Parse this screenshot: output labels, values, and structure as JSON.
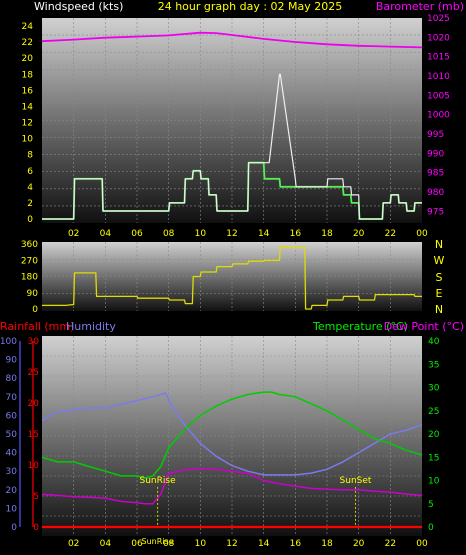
{
  "chart_data": [
    {
      "type": "line",
      "title": "24 hour graph day : 02 May 2025",
      "ylabel_left": "Windspeed (kts)",
      "ylabel_right": "Barometer (mb)",
      "x_ticks": [
        "02",
        "04",
        "06",
        "08",
        "10",
        "12",
        "14",
        "16",
        "18",
        "20",
        "22",
        "00"
      ],
      "x_range": [
        0,
        24
      ],
      "left_axis": {
        "range": [
          0,
          25
        ],
        "ticks": [
          0,
          2,
          4,
          6,
          8,
          10,
          12,
          14,
          16,
          18,
          20,
          22,
          24
        ]
      },
      "right_axis": {
        "range": [
          973,
          1025
        ],
        "ticks": [
          975,
          980,
          985,
          990,
          995,
          1000,
          1005,
          1010,
          1015,
          1020,
          1025
        ]
      },
      "series": [
        {
          "name": "Windspeed (kts)",
          "axis": "left",
          "color": "#55ee55",
          "x": [
            0,
            2.0,
            2.05,
            3.8,
            3.85,
            8.0,
            8.05,
            9.0,
            9.05,
            9.5,
            9.55,
            10.0,
            10.05,
            10.5,
            10.55,
            11.0,
            11.05,
            13.0,
            13.05,
            14.0,
            14.05,
            15.0,
            15.05,
            16.0,
            16.05,
            18.5,
            18.55,
            19.0,
            19.05,
            19.5,
            19.55,
            20.0,
            20.05,
            21.5,
            21.55,
            22.0,
            22.05,
            22.5,
            22.55,
            23.0,
            23.05,
            23.5,
            23.55,
            24.0
          ],
          "y": [
            0,
            0,
            5,
            5,
            1,
            1,
            2,
            2,
            5,
            5,
            6,
            6,
            5,
            5,
            3,
            3,
            1,
            1,
            7,
            7,
            5,
            5,
            4,
            4,
            4,
            4,
            4,
            4,
            3,
            3,
            2,
            2,
            0,
            0,
            2,
            2,
            3,
            3,
            2,
            2,
            1,
            1,
            2,
            2
          ]
        },
        {
          "name": "Gust",
          "axis": "left",
          "color": "#eeeeee",
          "x": [
            0,
            2.0,
            2.05,
            3.8,
            3.85,
            8.0,
            8.05,
            9.0,
            9.05,
            9.5,
            9.55,
            10.0,
            10.05,
            10.5,
            10.55,
            11.0,
            11.05,
            13.0,
            13.05,
            14.3,
            14.35,
            15.0,
            15.05,
            16.0,
            16.05,
            18.0,
            18.05,
            19.0,
            19.05,
            19.5,
            19.55,
            20.0,
            20.05,
            21.5,
            21.55,
            22.0,
            22.05,
            22.5,
            22.55,
            23.0,
            23.05,
            23.5,
            23.55,
            24.0
          ],
          "y": [
            0,
            0,
            5,
            5,
            1,
            1,
            2,
            2,
            5,
            5,
            6,
            6,
            5,
            5,
            3,
            3,
            1,
            1,
            7,
            7,
            7,
            18,
            18,
            5,
            4,
            4,
            5,
            5,
            4,
            4,
            3,
            3,
            0,
            0,
            2,
            2,
            3,
            3,
            2,
            2,
            1,
            1,
            2,
            2
          ]
        },
        {
          "name": "Barometer (mb)",
          "axis": "right",
          "color": "#ee00ee",
          "x": [
            0,
            2,
            4,
            6,
            8,
            10,
            11,
            12,
            14,
            16,
            18,
            20,
            22,
            24
          ],
          "y": [
            1019.0,
            1019.4,
            1019.9,
            1020.2,
            1020.5,
            1021.2,
            1021.1,
            1020.6,
            1019.6,
            1018.8,
            1018.2,
            1017.8,
            1017.6,
            1017.4
          ]
        }
      ]
    },
    {
      "type": "line",
      "title": "",
      "x_ticks": [
        "02",
        "04",
        "06",
        "08",
        "10",
        "12",
        "14",
        "16",
        "18",
        "20",
        "22",
        "00"
      ],
      "x_range": [
        0,
        24
      ],
      "left_axis": {
        "range": [
          0,
          360
        ],
        "ticks": [
          0,
          90,
          180,
          270,
          360
        ]
      },
      "compass_labels": [
        "N",
        "W",
        "S",
        "E",
        "N"
      ],
      "series": [
        {
          "name": "Wind direction",
          "axis": "left",
          "color": "#dddd00",
          "x": [
            0,
            1.5,
            2.0,
            2.05,
            3.4,
            3.45,
            4.0,
            6.0,
            6.05,
            8.0,
            8.05,
            9.0,
            9.05,
            9.5,
            9.55,
            10.0,
            10.05,
            11.0,
            11.05,
            12.0,
            12.05,
            13.0,
            13.05,
            14.0,
            14.05,
            15.0,
            15.05,
            16.0,
            16.05,
            16.6,
            16.65,
            17.0,
            17.05,
            18.0,
            18.05,
            19.0,
            19.05,
            20.0,
            20.05,
            21.0,
            21.05,
            22.0,
            22.05,
            23.5,
            23.55,
            24.0
          ],
          "y": [
            20,
            20,
            25,
            200,
            200,
            70,
            70,
            70,
            60,
            60,
            50,
            50,
            30,
            30,
            180,
            180,
            205,
            205,
            235,
            235,
            250,
            250,
            265,
            265,
            270,
            270,
            345,
            345,
            340,
            340,
            0,
            0,
            20,
            20,
            50,
            50,
            70,
            70,
            50,
            50,
            80,
            80,
            80,
            80,
            70,
            70
          ]
        }
      ]
    },
    {
      "type": "line",
      "title": "",
      "ylabel_left_1": "Rainfall (mm)",
      "ylabel_left_2": "Humidity",
      "ylabel_right_1": "Temperature (°C)",
      "ylabel_right_2": "Dew Point (°C)",
      "x_ticks": [
        "02",
        "04",
        "06",
        "08",
        "10",
        "12",
        "14",
        "16",
        "18",
        "20",
        "22",
        "00"
      ],
      "x_range": [
        0,
        24
      ],
      "humidity_axis": {
        "range": [
          0,
          100
        ],
        "ticks": [
          0,
          10,
          20,
          30,
          40,
          50,
          60,
          70,
          80,
          90,
          100
        ]
      },
      "rain_axis": {
        "range": [
          0,
          30
        ],
        "ticks": [
          0,
          5,
          10,
          15,
          20,
          25,
          30
        ]
      },
      "temp_axis": {
        "range": [
          0,
          40
        ],
        "ticks": [
          0,
          5,
          10,
          15,
          20,
          25,
          30,
          35,
          40
        ]
      },
      "annotations": [
        {
          "text": "SunRise",
          "x": 7.3,
          "y_temp": 9.5
        },
        {
          "text": "SunSet",
          "x": 19.8,
          "y_temp": 9.5
        },
        {
          "text": "SunRise",
          "x": 7.3,
          "y_temp": -2
        }
      ],
      "series": [
        {
          "name": "Humidity",
          "axis": "humidity",
          "color": "#7a7aee",
          "x": [
            0,
            0.5,
            1,
            2,
            3,
            4,
            5,
            6,
            7,
            7.8,
            8.2,
            9,
            10,
            11,
            12,
            13,
            14,
            15,
            16,
            17,
            18,
            19,
            20,
            21,
            22,
            23,
            24
          ],
          "y": [
            57,
            60,
            62,
            63,
            64,
            64,
            66,
            68,
            70,
            72,
            65,
            55,
            45,
            38,
            33,
            30,
            28,
            28,
            28,
            29,
            31,
            35,
            40,
            45,
            50,
            52,
            55
          ]
        },
        {
          "name": "Temperature (°C)",
          "axis": "temp",
          "color": "#00cc00",
          "x": [
            0,
            1,
            2,
            3,
            4,
            5,
            6,
            6.5,
            7,
            7.5,
            8,
            9,
            10,
            11,
            12,
            13,
            14,
            14.5,
            15,
            16,
            17,
            18,
            19,
            20,
            21,
            22,
            23,
            24
          ],
          "y": [
            15,
            14,
            14,
            13,
            12,
            11,
            11,
            10.5,
            11,
            13,
            17,
            21,
            24,
            26,
            27.5,
            28.5,
            29,
            29,
            28.5,
            28,
            26.5,
            25,
            23,
            21,
            19,
            18,
            16.5,
            15.5
          ]
        },
        {
          "name": "Dew Point (°C)",
          "axis": "temp",
          "color": "#cc00cc",
          "x": [
            0,
            1,
            2,
            3,
            4,
            5,
            6,
            6.5,
            7,
            7.5,
            8,
            9,
            10,
            11,
            12,
            13,
            14,
            15,
            16,
            17,
            18,
            19,
            20,
            21,
            22,
            23,
            24
          ],
          "y": [
            7,
            6.8,
            6.5,
            6.4,
            6.2,
            5.5,
            5.2,
            5,
            5,
            7,
            11.5,
            12.3,
            12.5,
            12.4,
            12,
            11.5,
            10,
            9.3,
            8.8,
            8.3,
            8.1,
            8,
            8,
            7.7,
            7.5,
            7.1,
            6.8
          ]
        },
        {
          "name": "Rainfall (mm)",
          "axis": "rain",
          "color": "#ff0000",
          "x": [
            0,
            24
          ],
          "y": [
            0,
            0
          ]
        }
      ]
    }
  ],
  "colors": {
    "title": "#ffff00",
    "windspeed_label": "#ffffff",
    "barometer_label": "#ff00ff",
    "rain_label": "#ff0000",
    "humidity_label": "#7a7aee",
    "temperature_label": "#00ee00",
    "dewpoint_label": "#ff00ff",
    "compass": "#ffff00",
    "tick": "#ffff00",
    "rain_tick": "#ff0000",
    "humidity_tick": "#7a7aee",
    "temp_tick": "#00ee00"
  }
}
